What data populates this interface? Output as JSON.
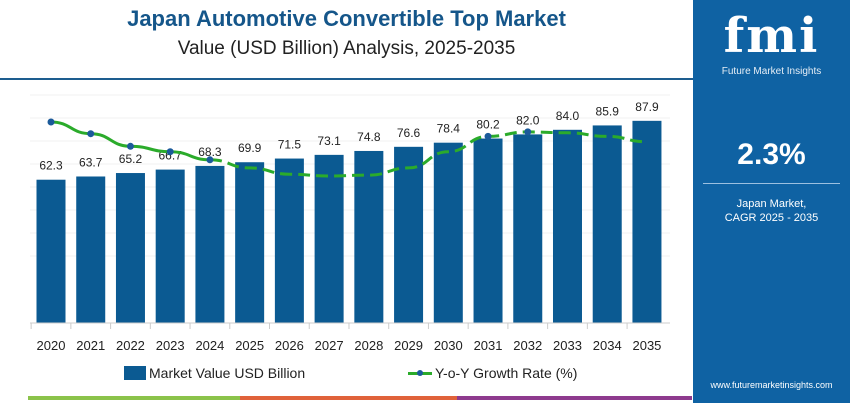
{
  "title": "Japan Automotive Convertible Top Market",
  "subtitle": "Value (USD Billion) Analysis, 2025-2035",
  "side": {
    "logo": "fmi",
    "logo_sub": "Future Market Insights",
    "cagr": "2.3%",
    "cagr_label1": "Japan Market,",
    "cagr_label2": "CAGR 2025 - 2035",
    "url": "www.futuremarketinsights.com"
  },
  "colors": {
    "bar": "#0b5a92",
    "line": "#2bab2b",
    "dot": "#1b5a9a",
    "title": "#15568a",
    "panel": "#0f62a3",
    "strip": [
      "#8bc34a",
      "#e0623a",
      "#8e3a8e"
    ]
  },
  "chart_data": {
    "type": "bar",
    "categories": [
      "2020",
      "2021",
      "2022",
      "2023",
      "2024",
      "2025",
      "2026",
      "2027",
      "2028",
      "2029",
      "2030",
      "2031",
      "2032",
      "2033",
      "2034",
      "2035"
    ],
    "series": [
      {
        "name": "Market Value USD Billion",
        "type": "bar",
        "values": [
          62.3,
          63.7,
          65.2,
          66.7,
          68.3,
          69.9,
          71.5,
          73.1,
          74.8,
          76.6,
          78.4,
          80.2,
          82.0,
          84.0,
          85.9,
          87.9
        ]
      },
      {
        "name": "Y-o-Y Growth Rate (%)",
        "type": "line",
        "values": [
          2.6,
          2.47,
          2.33,
          2.27,
          2.18,
          2.09,
          2.02,
          2.0,
          2.01,
          2.09,
          2.27,
          2.44,
          2.49,
          2.48,
          2.44,
          2.38
        ]
      }
    ],
    "ylim": [
      0,
      100
    ],
    "grid": true,
    "legend": "bottom"
  }
}
